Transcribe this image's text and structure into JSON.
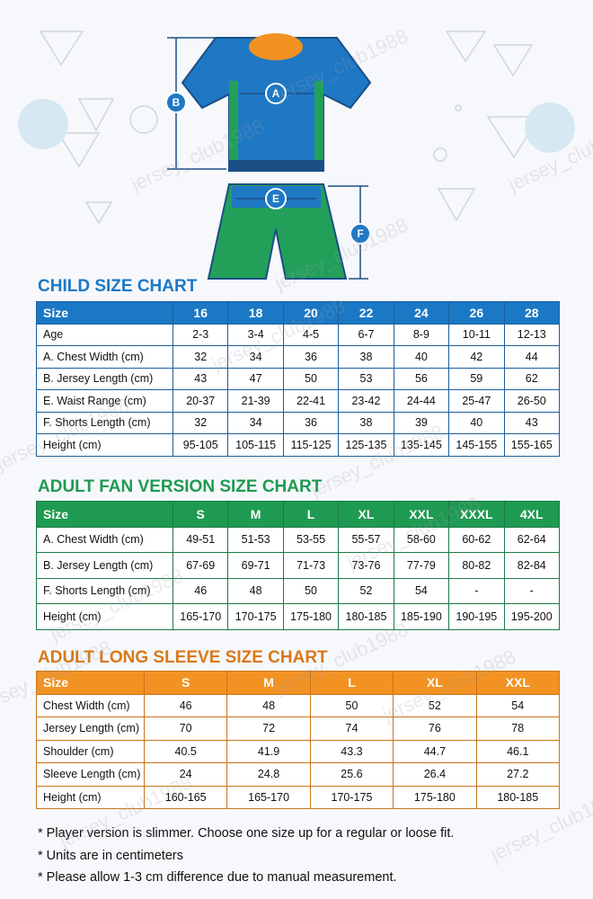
{
  "watermark": "jersey_club1988",
  "diagram": {
    "labels": [
      "A",
      "B",
      "E",
      "F"
    ]
  },
  "tables": [
    {
      "title": "CHILD SIZE CHART",
      "header": [
        "Size",
        "16",
        "18",
        "20",
        "22",
        "24",
        "26",
        "28"
      ],
      "rows": [
        [
          "Age",
          "2-3",
          "3-4",
          "4-5",
          "6-7",
          "8-9",
          "10-11",
          "12-13"
        ],
        [
          "A. Chest Width (cm)",
          "32",
          "34",
          "36",
          "38",
          "40",
          "42",
          "44"
        ],
        [
          "B. Jersey Length (cm)",
          "43",
          "47",
          "50",
          "53",
          "56",
          "59",
          "62"
        ],
        [
          "E. Waist Range (cm)",
          "20-37",
          "21-39",
          "22-41",
          "23-42",
          "24-44",
          "25-47",
          "26-50"
        ],
        [
          "F. Shorts Length (cm)",
          "32",
          "34",
          "36",
          "38",
          "39",
          "40",
          "43"
        ],
        [
          "Height (cm)",
          "95-105",
          "105-115",
          "115-125",
          "125-135",
          "135-145",
          "145-155",
          "155-165"
        ]
      ]
    },
    {
      "title": "ADULT FAN VERSION SIZE CHART",
      "header": [
        "Size",
        "S",
        "M",
        "L",
        "XL",
        "XXL",
        "XXXL",
        "4XL"
      ],
      "rows": [
        [
          "A. Chest Width (cm)",
          "49-51",
          "51-53",
          "53-55",
          "55-57",
          "58-60",
          "60-62",
          "62-64"
        ],
        [
          "B. Jersey Length (cm)",
          "67-69",
          "69-71",
          "71-73",
          "73-76",
          "77-79",
          "80-82",
          "82-84"
        ],
        [
          "F. Shorts Length (cm)",
          "46",
          "48",
          "50",
          "52",
          "54",
          "-",
          "-"
        ],
        [
          "Height (cm)",
          "165-170",
          "170-175",
          "175-180",
          "180-185",
          "185-190",
          "190-195",
          "195-200"
        ]
      ]
    },
    {
      "title": "ADULT LONG SLEEVE SIZE CHART",
      "header": [
        "Size",
        "S",
        "M",
        "L",
        "XL",
        "XXL"
      ],
      "rows": [
        [
          "Chest Width (cm)",
          "46",
          "48",
          "50",
          "52",
          "54"
        ],
        [
          "Jersey Length (cm)",
          "70",
          "72",
          "74",
          "76",
          "78"
        ],
        [
          "Shoulder (cm)",
          "40.5",
          "41.9",
          "43.3",
          "44.7",
          "46.1"
        ],
        [
          "Sleeve Length (cm)",
          "24",
          "24.8",
          "25.6",
          "26.4",
          "27.2"
        ],
        [
          "Height (cm)",
          "160-165",
          "165-170",
          "170-175",
          "175-180",
          "180-185"
        ]
      ]
    }
  ],
  "notes": [
    "* Player version is slimmer. Choose one size up for a regular or loose fit.",
    "* Units are in centimeters",
    "* Please allow 1-3 cm difference due to manual measurement."
  ]
}
